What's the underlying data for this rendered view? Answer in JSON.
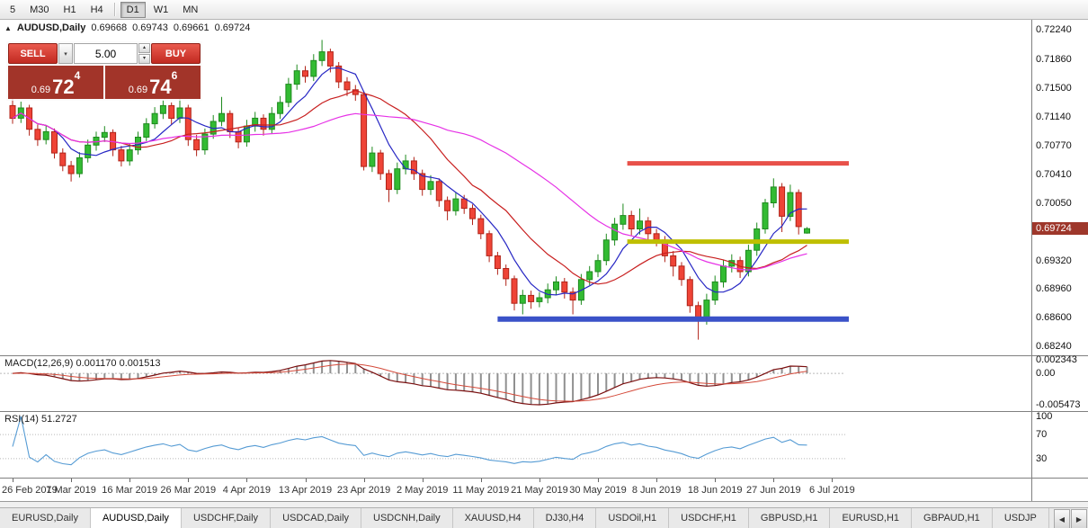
{
  "toolbar": {
    "groups": [
      [
        "5",
        "M30",
        "H1",
        "H4"
      ],
      [
        "D1",
        "W1",
        "MN"
      ]
    ],
    "active": "D1"
  },
  "header": {
    "symbol_title": "AUDUSD,Daily",
    "open": "0.69668",
    "high": "0.69743",
    "low": "0.69661",
    "close": "0.69724"
  },
  "trade_panel": {
    "sell_label": "SELL",
    "buy_label": "BUY",
    "lot_value": "5.00",
    "sell_price_base": "0.69",
    "sell_price_pips": "72",
    "sell_price_frac": "4",
    "buy_price_base": "0.69",
    "buy_price_pips": "74",
    "buy_price_frac": "6"
  },
  "price_axis": {
    "labels": [
      "0.72240",
      "0.71860",
      "0.71500",
      "0.71140",
      "0.70770",
      "0.70410",
      "0.70050",
      "0.69320",
      "0.68960",
      "0.68600",
      "0.68240"
    ],
    "current_price": "0.69724",
    "tag_color": "#9e372b"
  },
  "macd": {
    "label": "MACD(12,26,9) 0.001170 0.001513",
    "axis": [
      "0.002343",
      "0.00",
      "-0.005473"
    ]
  },
  "rsi": {
    "label": "RSI(14) 51.2727",
    "axis": [
      "100",
      "70",
      "30"
    ]
  },
  "tabs": {
    "items": [
      "EURUSD,Daily",
      "AUDUSD,Daily",
      "USDCHF,Daily",
      "USDCAD,Daily",
      "USDCNH,Daily",
      "XAUUSD,H4",
      "DJ30,H4",
      "USDOil,H1",
      "USDCHF,H1",
      "GBPUSD,H1",
      "EURUSD,H1",
      "GBPAUD,H1",
      "USDJP"
    ],
    "active": "AUDUSD,Daily"
  },
  "chart_data": {
    "type": "candlestick",
    "symbol": "AUDUSD",
    "timeframe": "Daily",
    "price_range": {
      "top": 0.72365,
      "bottom": 0.68122
    },
    "ohlc": [
      [
        0.7128,
        0.7137,
        0.7105,
        0.7112
      ],
      [
        0.7112,
        0.7133,
        0.7106,
        0.7125
      ],
      [
        0.7125,
        0.7129,
        0.709,
        0.7098
      ],
      [
        0.7098,
        0.7104,
        0.7077,
        0.7085
      ],
      [
        0.7085,
        0.7103,
        0.7079,
        0.7095
      ],
      [
        0.7095,
        0.7099,
        0.7061,
        0.7068
      ],
      [
        0.7068,
        0.7074,
        0.7045,
        0.7052
      ],
      [
        0.7052,
        0.7058,
        0.7032,
        0.7042
      ],
      [
        0.7042,
        0.7069,
        0.7037,
        0.7062
      ],
      [
        0.7062,
        0.7085,
        0.7056,
        0.7078
      ],
      [
        0.7078,
        0.7095,
        0.7071,
        0.7088
      ],
      [
        0.7088,
        0.7102,
        0.7082,
        0.7094
      ],
      [
        0.7094,
        0.7098,
        0.7064,
        0.7072
      ],
      [
        0.7072,
        0.7077,
        0.7051,
        0.7058
      ],
      [
        0.7058,
        0.708,
        0.7052,
        0.7072
      ],
      [
        0.7072,
        0.7095,
        0.7066,
        0.7088
      ],
      [
        0.7088,
        0.7112,
        0.7083,
        0.7105
      ],
      [
        0.7105,
        0.7126,
        0.7099,
        0.7118
      ],
      [
        0.7118,
        0.7135,
        0.7111,
        0.7128
      ],
      [
        0.7128,
        0.7132,
        0.7104,
        0.7112
      ],
      [
        0.7112,
        0.7138,
        0.7106,
        0.7125
      ],
      [
        0.7125,
        0.7129,
        0.7077,
        0.7085
      ],
      [
        0.7085,
        0.7091,
        0.7064,
        0.7072
      ],
      [
        0.7072,
        0.7099,
        0.7066,
        0.7092
      ],
      [
        0.7092,
        0.7116,
        0.7086,
        0.7108
      ],
      [
        0.7108,
        0.7139,
        0.7102,
        0.7118
      ],
      [
        0.7118,
        0.7122,
        0.7087,
        0.7095
      ],
      [
        0.7095,
        0.71,
        0.7074,
        0.7082
      ],
      [
        0.7082,
        0.711,
        0.7076,
        0.7102
      ],
      [
        0.7102,
        0.712,
        0.7095,
        0.7112
      ],
      [
        0.7112,
        0.7117,
        0.709,
        0.7098
      ],
      [
        0.7098,
        0.7126,
        0.7092,
        0.7118
      ],
      [
        0.7118,
        0.714,
        0.7111,
        0.7132
      ],
      [
        0.7132,
        0.7163,
        0.7126,
        0.7155
      ],
      [
        0.7155,
        0.718,
        0.7148,
        0.7172
      ],
      [
        0.7172,
        0.7178,
        0.7157,
        0.7165
      ],
      [
        0.7165,
        0.7193,
        0.7159,
        0.7185
      ],
      [
        0.7185,
        0.7211,
        0.7178,
        0.7196
      ],
      [
        0.7196,
        0.72,
        0.717,
        0.7178
      ],
      [
        0.7178,
        0.7183,
        0.715,
        0.7158
      ],
      [
        0.7158,
        0.7164,
        0.714,
        0.7148
      ],
      [
        0.7148,
        0.7154,
        0.7134,
        0.7142
      ],
      [
        0.7142,
        0.7146,
        0.7046,
        0.7051
      ],
      [
        0.7051,
        0.7076,
        0.7044,
        0.7068
      ],
      [
        0.7068,
        0.7072,
        0.7034,
        0.7042
      ],
      [
        0.7042,
        0.7047,
        0.7006,
        0.7022
      ],
      [
        0.7022,
        0.7056,
        0.7016,
        0.7048
      ],
      [
        0.7048,
        0.7066,
        0.7041,
        0.7058
      ],
      [
        0.7058,
        0.7063,
        0.7034,
        0.7042
      ],
      [
        0.7042,
        0.7047,
        0.7014,
        0.7022
      ],
      [
        0.7022,
        0.704,
        0.7015,
        0.7032
      ],
      [
        0.7032,
        0.7036,
        0.7,
        0.7008
      ],
      [
        0.7008,
        0.7013,
        0.6983,
        0.6995
      ],
      [
        0.6995,
        0.7018,
        0.6989,
        0.701
      ],
      [
        0.701,
        0.7015,
        0.6991,
        0.6998
      ],
      [
        0.6998,
        0.7003,
        0.6977,
        0.6985
      ],
      [
        0.6985,
        0.699,
        0.6959,
        0.6966
      ],
      [
        0.6966,
        0.697,
        0.693,
        0.6938
      ],
      [
        0.6938,
        0.6943,
        0.6914,
        0.6922
      ],
      [
        0.6922,
        0.6927,
        0.69,
        0.6909
      ],
      [
        0.6909,
        0.6913,
        0.6869,
        0.6878
      ],
      [
        0.6878,
        0.6895,
        0.6864,
        0.6888
      ],
      [
        0.6888,
        0.6894,
        0.6871,
        0.688
      ],
      [
        0.688,
        0.6892,
        0.6873,
        0.6885
      ],
      [
        0.6885,
        0.6903,
        0.6878,
        0.6895
      ],
      [
        0.6895,
        0.6912,
        0.6888,
        0.6905
      ],
      [
        0.6905,
        0.691,
        0.6884,
        0.6892
      ],
      [
        0.6892,
        0.6898,
        0.6864,
        0.6882
      ],
      [
        0.6882,
        0.6915,
        0.6876,
        0.6908
      ],
      [
        0.6908,
        0.6925,
        0.6901,
        0.6918
      ],
      [
        0.6918,
        0.694,
        0.6911,
        0.6932
      ],
      [
        0.6932,
        0.6966,
        0.6926,
        0.6958
      ],
      [
        0.6958,
        0.6986,
        0.6951,
        0.6978
      ],
      [
        0.6978,
        0.7004,
        0.6971,
        0.6989
      ],
      [
        0.6989,
        0.6995,
        0.6964,
        0.6972
      ],
      [
        0.6972,
        0.6998,
        0.6965,
        0.6982
      ],
      [
        0.6982,
        0.6987,
        0.6958,
        0.6966
      ],
      [
        0.6966,
        0.6972,
        0.695,
        0.6958
      ],
      [
        0.6958,
        0.6963,
        0.693,
        0.6938
      ],
      [
        0.6938,
        0.6944,
        0.6912,
        0.6925
      ],
      [
        0.6925,
        0.693,
        0.69,
        0.6908
      ],
      [
        0.6908,
        0.6912,
        0.6866,
        0.6875
      ],
      [
        0.6875,
        0.688,
        0.6832,
        0.6858
      ],
      [
        0.6858,
        0.689,
        0.6851,
        0.6882
      ],
      [
        0.6882,
        0.6913,
        0.6876,
        0.6905
      ],
      [
        0.6905,
        0.6933,
        0.6898,
        0.6925
      ],
      [
        0.6925,
        0.694,
        0.6917,
        0.6932
      ],
      [
        0.6932,
        0.6937,
        0.691,
        0.6918
      ],
      [
        0.6918,
        0.6952,
        0.6912,
        0.6945
      ],
      [
        0.6945,
        0.698,
        0.6938,
        0.6972
      ],
      [
        0.6972,
        0.701,
        0.6966,
        0.7005
      ],
      [
        0.7005,
        0.7036,
        0.6999,
        0.7025
      ],
      [
        0.7025,
        0.703,
        0.6968,
        0.6988
      ],
      [
        0.6988,
        0.7028,
        0.6982,
        0.7018
      ],
      [
        0.7018,
        0.7022,
        0.6965,
        0.6975
      ],
      [
        0.69668,
        0.69743,
        0.69661,
        0.69724
      ]
    ],
    "moving_averages": [
      {
        "period": 6,
        "color": "#2727c4"
      },
      {
        "period": 14,
        "color": "#c81f1f"
      },
      {
        "period": 32,
        "color": "#e632e6"
      }
    ],
    "hlines": [
      {
        "name": "resistance-line",
        "color": "#e8514a",
        "price": 0.7055,
        "from_bar": 73.5,
        "to_bar": 100,
        "width": 5
      },
      {
        "name": "pivot-line",
        "color": "#bfbf00",
        "price": 0.6956,
        "from_bar": 73.5,
        "to_bar": 100,
        "width": 5
      },
      {
        "name": "support-line",
        "color": "#3a52c8",
        "price": 0.6858,
        "from_bar": 58,
        "to_bar": 100,
        "width": 6
      }
    ],
    "macd_params": {
      "fast": 12,
      "slow": 26,
      "signal": 9,
      "range": {
        "max": 0.0027,
        "min": -0.0063
      }
    },
    "rsi_params": {
      "period": 14,
      "levels": [
        70,
        30
      ]
    },
    "x_ticks": {
      "bar_step": 7,
      "labels": [
        "26 Feb 2019",
        "7 Mar 2019",
        "16 Mar 2019",
        "26 Mar 2019",
        "4 Apr 2019",
        "13 Apr 2019",
        "23 Apr 2019",
        "2 May 2019",
        "11 May 2019",
        "21 May 2019",
        "30 May 2019",
        "8 Jun 2019",
        "18 Jun 2019",
        "27 Jun 2019",
        "6 Jul 2019"
      ]
    }
  }
}
